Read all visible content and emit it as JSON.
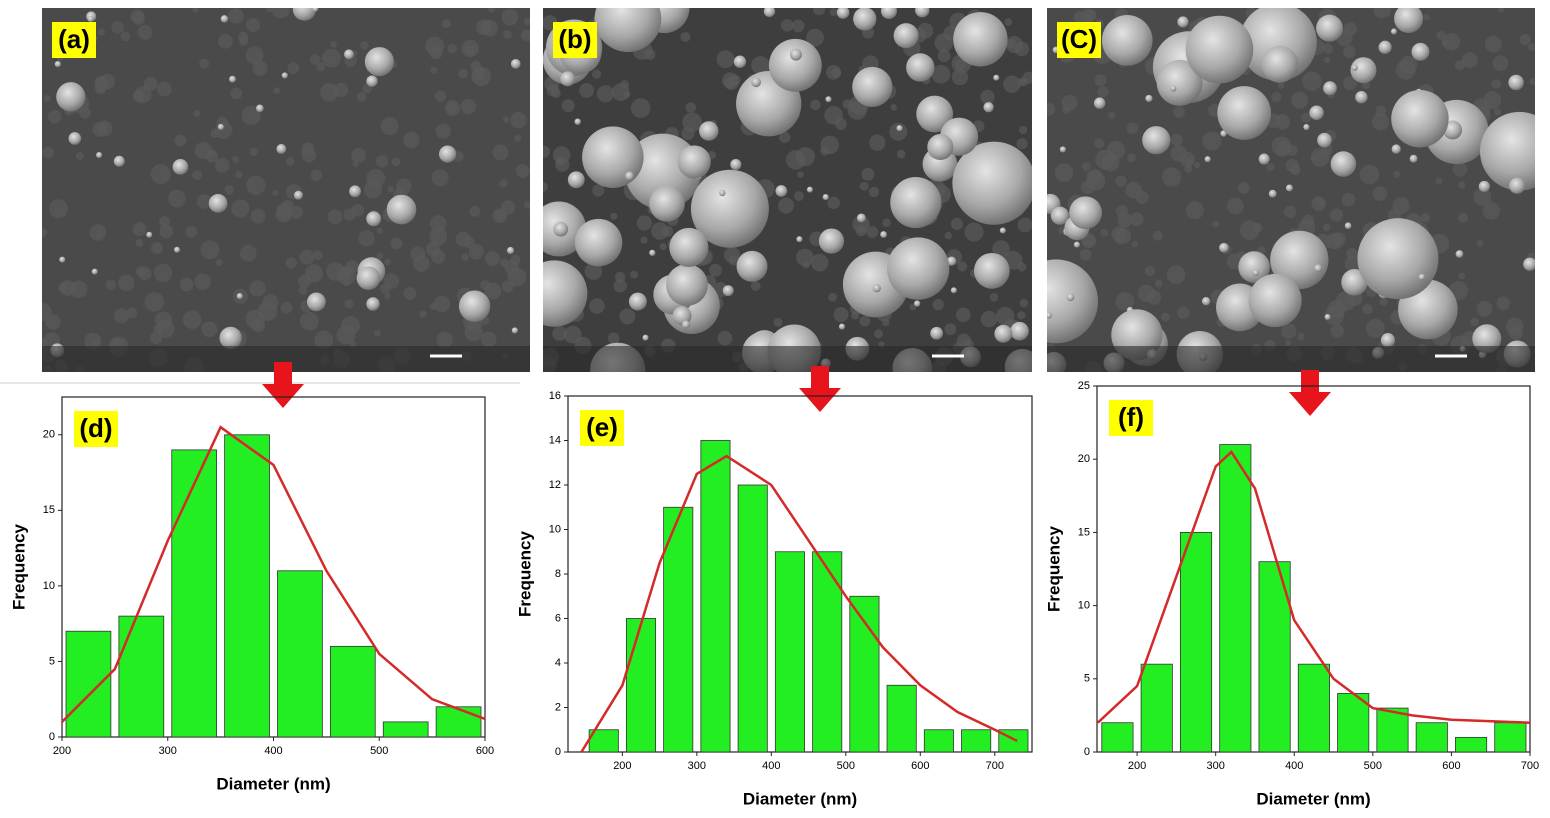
{
  "images": [
    {
      "label": "(a)"
    },
    {
      "label": "(b)"
    },
    {
      "label": "(C)"
    }
  ],
  "chart_data": [
    {
      "type": "histogram",
      "label": "(d)",
      "x_label": "Diameter (nm)",
      "y_label": "Frequency",
      "bins": [
        200,
        250,
        300,
        350,
        400,
        450,
        500,
        550,
        600
      ],
      "values": [
        7,
        8,
        19,
        20,
        11,
        6,
        1,
        2
      ],
      "color": "#22ee22",
      "xlim": [
        200,
        600
      ],
      "xticks": [
        200,
        300,
        400,
        500,
        600
      ],
      "ylim": [
        0,
        22.5
      ],
      "yticks": [
        0,
        5,
        10,
        15,
        20
      ],
      "fit": {
        "color": "#d42a2a",
        "x": [
          200,
          250,
          300,
          350,
          400,
          450,
          500,
          550,
          600
        ],
        "values": [
          1.0,
          4.5,
          13,
          20.5,
          18,
          11,
          5.5,
          2.5,
          1.2
        ]
      }
    },
    {
      "type": "histogram",
      "label": "(e)",
      "x_label": "Diameter (nm)",
      "y_label": "Frequency",
      "bins": [
        150,
        200,
        250,
        300,
        350,
        400,
        450,
        500,
        550,
        600,
        650,
        700,
        750
      ],
      "values": [
        1,
        6,
        11,
        14,
        12,
        9,
        9,
        7,
        3,
        1,
        1,
        1
      ],
      "color": "#22ee22",
      "xlim": [
        127,
        750
      ],
      "xticks": [
        200,
        300,
        400,
        500,
        600,
        700
      ],
      "ylim": [
        0,
        16
      ],
      "yticks": [
        0,
        2,
        4,
        6,
        8,
        10,
        12,
        14,
        16
      ],
      "fit": {
        "color": "#d42a2a",
        "x": [
          145,
          200,
          250,
          300,
          340,
          400,
          450,
          500,
          550,
          600,
          650,
          700,
          730
        ],
        "values": [
          0,
          3,
          8.5,
          12.5,
          13.3,
          12,
          9.5,
          7,
          4.7,
          3,
          1.8,
          1,
          0.5
        ]
      }
    },
    {
      "type": "histogram",
      "label": "(f)",
      "x_label": "Diameter (nm)",
      "y_label": "Frequency",
      "bins": [
        150,
        200,
        250,
        300,
        350,
        400,
        450,
        500,
        550,
        600,
        650,
        700
      ],
      "values": [
        2,
        6,
        15,
        21,
        13,
        6,
        4,
        3,
        2,
        1,
        2
      ],
      "color": "#22ee22",
      "xlim": [
        149,
        700
      ],
      "xticks": [
        200,
        300,
        400,
        500,
        600,
        700
      ],
      "ylim": [
        0,
        25
      ],
      "yticks": [
        0,
        5,
        10,
        15,
        20,
        25
      ],
      "fit": {
        "color": "#d42a2a",
        "x": [
          150,
          200,
          250,
          300,
          320,
          350,
          400,
          450,
          500,
          550,
          600,
          700
        ],
        "values": [
          2,
          4.5,
          12,
          19.5,
          20.5,
          18,
          9,
          5,
          3,
          2.5,
          2.2,
          2
        ]
      }
    }
  ]
}
